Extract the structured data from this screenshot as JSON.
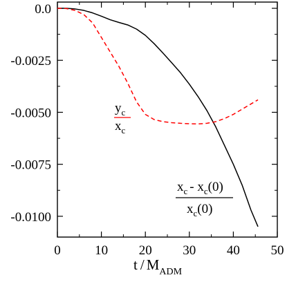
{
  "chart_data": {
    "type": "line",
    "xlabel": {
      "base": "t",
      "slash": "/",
      "denominator": "M",
      "denominator_sub": "ADM"
    },
    "ylabel": "",
    "xlim": [
      0,
      50
    ],
    "ylim": [
      -0.011,
      0.0003
    ],
    "x_ticks": [
      0,
      10,
      20,
      30,
      40,
      50
    ],
    "x_tick_labels": [
      "0",
      "10",
      "20",
      "30",
      "40",
      "50"
    ],
    "y_ticks": [
      0.0,
      -0.0025,
      -0.005,
      -0.0075,
      -0.01
    ],
    "y_tick_labels": [
      "0.0",
      "-0.0025",
      "-0.0050",
      "-0.0075",
      "-0.0100"
    ],
    "grid": false,
    "legend": "none",
    "series": [
      {
        "color": "#000000",
        "dash": "solid",
        "label": {
          "num_base": "x",
          "num_sub": "c",
          "num_mid": "- x",
          "num_sub2": "c",
          "num_tail": "(0)",
          "den_base": "x",
          "den_sub": "c",
          "den_tail": "(0)"
        },
        "x": [
          0,
          2,
          4,
          6,
          8,
          10,
          12,
          14,
          16,
          18,
          20,
          22,
          24,
          26,
          28,
          30,
          32,
          34,
          36,
          38,
          40,
          42,
          44,
          45.6
        ],
        "y": [
          0.0,
          0.0,
          -3e-05,
          -0.0001,
          -0.00022,
          -0.00038,
          -0.00055,
          -0.00068,
          -0.0008,
          -0.001,
          -0.0013,
          -0.0017,
          -0.00215,
          -0.00262,
          -0.0031,
          -0.00365,
          -0.00425,
          -0.00492,
          -0.0057,
          -0.0066,
          -0.0075,
          -0.0085,
          -0.0097,
          -0.0105
        ]
      },
      {
        "color": "#ff0000",
        "dash": "dashed",
        "label": {
          "num_base": "y",
          "num_sub": "c",
          "den_base": "x",
          "den_sub": "c"
        },
        "x": [
          0,
          2,
          4,
          6,
          8,
          10,
          12,
          14,
          16,
          18,
          20,
          22,
          24,
          26,
          28,
          30,
          32,
          34,
          36,
          38,
          40,
          42,
          44,
          45.6
        ],
        "y": [
          0.0,
          -1e-05,
          -0.0001,
          -0.0003,
          -0.0007,
          -0.0014,
          -0.0021,
          -0.0028,
          -0.0036,
          -0.0045,
          -0.0051,
          -0.00535,
          -0.00545,
          -0.0055,
          -0.00553,
          -0.00555,
          -0.00556,
          -0.00553,
          -0.00545,
          -0.0053,
          -0.0051,
          -0.00485,
          -0.0046,
          -0.0044
        ]
      }
    ]
  }
}
